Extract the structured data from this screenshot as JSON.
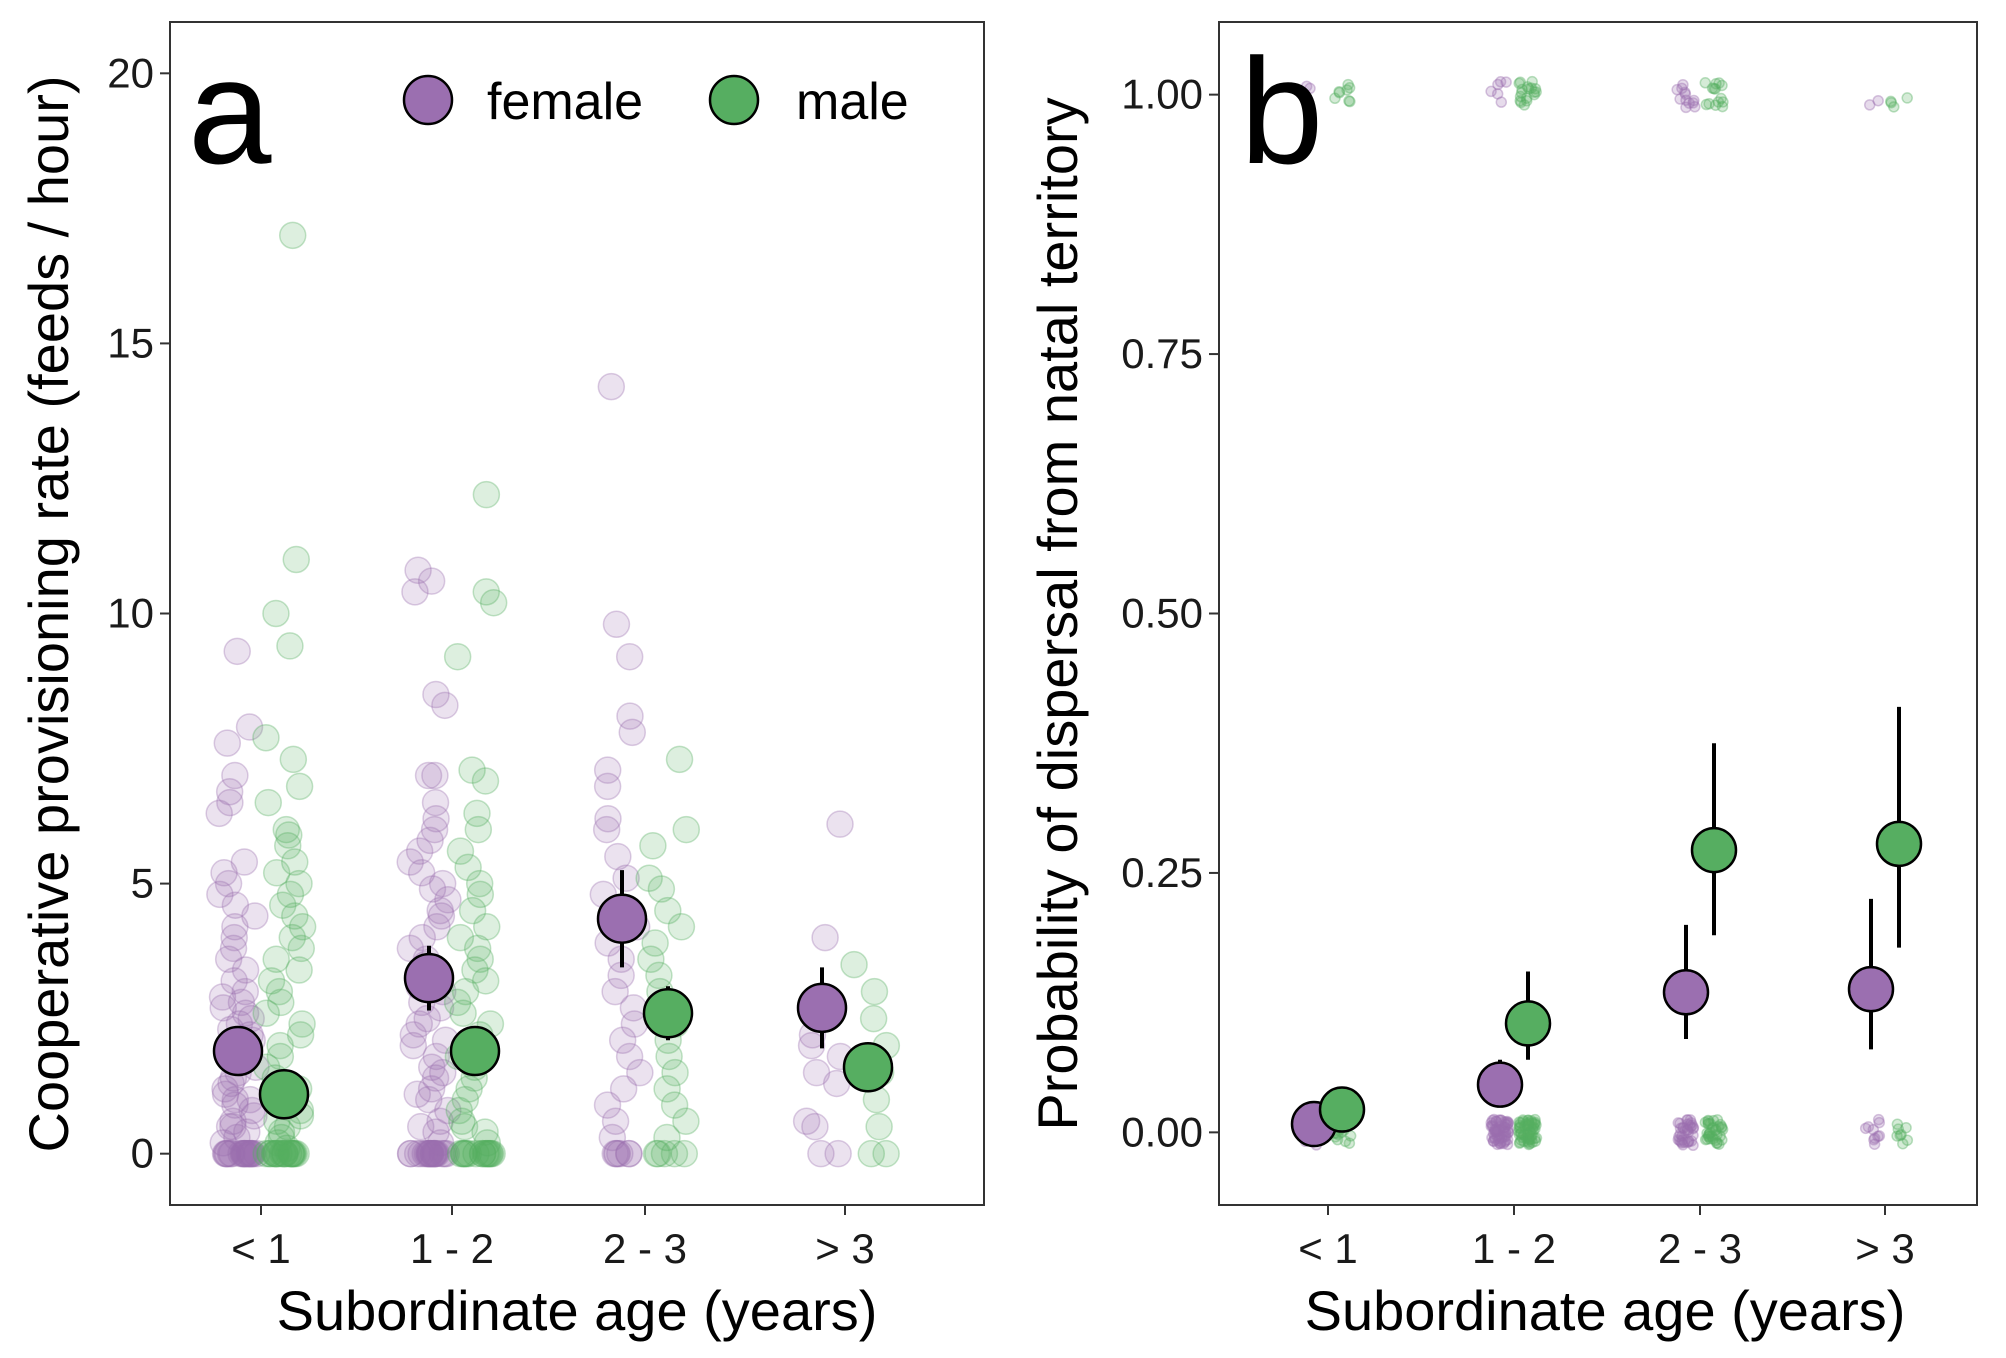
{
  "colors": {
    "female": "#9b6fb0",
    "male": "#56ae61",
    "frame": "#333333"
  },
  "legend": {
    "female": "female",
    "male": "male"
  },
  "chart_data": [
    {
      "panel": "a",
      "type": "scatter",
      "xlabel": "Subordinate age (years)",
      "ylabel": "Cooperative provisioning rate (feeds / hour)",
      "categories": [
        "< 1",
        "1 - 2",
        "2 - 3",
        "> 3"
      ],
      "ylim": [
        -0.95,
        20.95
      ],
      "yticks": [
        0,
        5,
        10,
        15,
        20
      ],
      "ytick_labels": [
        "0",
        "5",
        "10",
        "15",
        "20"
      ],
      "grid": false,
      "legend_position": "top-right",
      "series": [
        {
          "name": "female",
          "means": [
            1.9,
            3.25,
            4.35,
            2.7
          ],
          "ci_low": [
            1.55,
            2.65,
            3.45,
            1.95
          ],
          "ci_high": [
            2.25,
            3.85,
            5.25,
            3.45
          ],
          "raw": [
            [
              0,
              0,
              0,
              0,
              0,
              0,
              0,
              0,
              0,
              0,
              0,
              0,
              0,
              0,
              0,
              0,
              0,
              0,
              0,
              0,
              0.2,
              0.3,
              0.4,
              0.5,
              0.5,
              0.6,
              0.7,
              0.8,
              0.9,
              1.0,
              1.0,
              1.1,
              1.2,
              1.3,
              1.4,
              1.5,
              1.6,
              1.7,
              1.8,
              1.9,
              2.0,
              2.1,
              2.2,
              2.3,
              2.4,
              2.5,
              2.6,
              2.7,
              2.8,
              2.9,
              3.0,
              3.2,
              3.4,
              3.6,
              3.8,
              4.0,
              4.2,
              4.4,
              4.6,
              4.8,
              5.0,
              5.2,
              5.4,
              6.3,
              6.5,
              6.7,
              7.0,
              7.6,
              7.9,
              9.3
            ],
            [
              0,
              0,
              0,
              0,
              0,
              0,
              0,
              0,
              0,
              0,
              0,
              0,
              0,
              0,
              0,
              0,
              0,
              0,
              0,
              0,
              0.2,
              0.4,
              0.5,
              0.6,
              0.8,
              1.0,
              1.1,
              1.2,
              1.4,
              1.5,
              1.6,
              1.8,
              2.0,
              2.1,
              2.2,
              2.4,
              2.5,
              2.7,
              2.8,
              3.0,
              3.1,
              3.3,
              3.5,
              3.6,
              3.8,
              4.0,
              4.2,
              4.4,
              4.5,
              4.7,
              4.9,
              5.0,
              5.2,
              5.4,
              5.6,
              5.8,
              6.0,
              6.2,
              6.5,
              7.0,
              7.0,
              8.3,
              8.5,
              10.4,
              10.6,
              10.8
            ],
            [
              0,
              0,
              0,
              0,
              0,
              0,
              0.3,
              0.6,
              0.9,
              1.2,
              1.5,
              1.8,
              2.1,
              2.4,
              2.7,
              3.0,
              3.3,
              3.6,
              3.9,
              4.2,
              4.5,
              4.8,
              5.1,
              5.5,
              6.0,
              6.2,
              6.8,
              7.1,
              7.8,
              8.1,
              9.2,
              9.8,
              14.2
            ],
            [
              0,
              0,
              0.5,
              0.6,
              1.3,
              1.5,
              1.8,
              2.0,
              2.2,
              4.0,
              6.1
            ]
          ]
        },
        {
          "name": "male",
          "means": [
            1.1,
            1.9,
            2.6,
            1.6
          ],
          "ci_low": [
            0.85,
            1.55,
            2.1,
            1.3
          ],
          "ci_high": [
            1.35,
            2.25,
            3.1,
            1.9
          ],
          "raw": [
            [
              0,
              0,
              0,
              0,
              0,
              0,
              0,
              0,
              0,
              0,
              0,
              0,
              0,
              0,
              0,
              0,
              0,
              0,
              0,
              0,
              0.1,
              0.2,
              0.3,
              0.4,
              0.5,
              0.6,
              0.7,
              0.8,
              0.9,
              1.0,
              1.2,
              1.4,
              1.6,
              1.8,
              2.0,
              2.2,
              2.4,
              2.6,
              2.8,
              3.0,
              3.2,
              3.4,
              3.6,
              3.8,
              4.0,
              4.2,
              4.4,
              4.6,
              4.8,
              5.0,
              5.2,
              5.4,
              5.7,
              5.9,
              6.0,
              6.5,
              6.8,
              7.3,
              7.7,
              9.4,
              10.0,
              11.0,
              17.0
            ],
            [
              0,
              0,
              0,
              0,
              0,
              0,
              0,
              0,
              0,
              0,
              0,
              0,
              0,
              0,
              0,
              0,
              0.2,
              0.4,
              0.5,
              0.6,
              0.8,
              1.0,
              1.2,
              1.4,
              1.6,
              1.8,
              2.0,
              2.2,
              2.4,
              2.6,
              2.8,
              3.0,
              3.2,
              3.4,
              3.6,
              3.8,
              4.0,
              4.2,
              4.5,
              4.8,
              5.0,
              5.3,
              5.6,
              6.0,
              6.3,
              6.9,
              7.1,
              9.2,
              10.2,
              10.4,
              12.2
            ],
            [
              0,
              0,
              0,
              0,
              0,
              0.3,
              0.6,
              0.9,
              1.2,
              1.5,
              1.8,
              2.1,
              2.4,
              2.7,
              3.0,
              3.3,
              3.6,
              3.9,
              4.2,
              4.5,
              4.9,
              5.1,
              5.7,
              6.0,
              7.3
            ],
            [
              0,
              0,
              0.5,
              1.0,
              1.5,
              2.0,
              2.5,
              3.0,
              3.5
            ]
          ]
        }
      ]
    },
    {
      "panel": "b",
      "type": "scatter",
      "xlabel": "Subordinate age (years)",
      "ylabel": "Probability of dispersal from natal territory",
      "categories": [
        "< 1",
        "1 - 2",
        "2 - 3",
        "> 3"
      ],
      "ylim": [
        -0.07,
        1.07
      ],
      "yticks": [
        0,
        0.25,
        0.5,
        0.75,
        1
      ],
      "ytick_labels": [
        "0.00",
        "0.25",
        "0.50",
        "0.75",
        "1.00"
      ],
      "grid": false,
      "series": [
        {
          "name": "female",
          "means": [
            0.008,
            0.046,
            0.135,
            0.138
          ],
          "ci_low": [
            0.002,
            0.03,
            0.09,
            0.08
          ],
          "ci_high": [
            0.02,
            0.07,
            0.2,
            0.225
          ],
          "raw_counts_at_0": [
            18,
            60,
            35,
            10
          ],
          "raw_counts_at_1": [
            2,
            6,
            12,
            2
          ]
        },
        {
          "name": "male",
          "means": [
            0.022,
            0.105,
            0.272,
            0.278
          ],
          "ci_low": [
            0.008,
            0.07,
            0.19,
            0.178
          ],
          "ci_high": [
            0.04,
            0.155,
            0.375,
            0.41
          ],
          "raw_counts_at_0": [
            14,
            60,
            35,
            8
          ],
          "raw_counts_at_1": [
            8,
            18,
            14,
            4
          ]
        }
      ]
    }
  ]
}
